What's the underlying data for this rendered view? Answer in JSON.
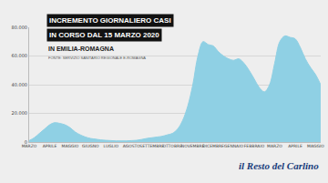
{
  "chart_data": {
    "type": "area",
    "title": "INCREMENTO GIORNALIERO CASI",
    "subtitle": "IN CORSO DAL 15 MARZO 2020",
    "annotations": [
      "IN EMILIA-ROMAGNA",
      "FONTE: SERVIZIO SANITARIO REGIONALE E-ROMAGNA",
      "il Resto del Carlino"
    ],
    "categories": [
      "MARZO",
      null,
      null,
      null,
      "APRILE",
      null,
      null,
      null,
      "MAGGIO",
      null,
      null,
      null,
      "GIUGNO",
      null,
      null,
      null,
      "LUGLIO",
      null,
      null,
      null,
      "AGOSTO",
      null,
      null,
      null,
      "SETTEMBRE",
      null,
      null,
      null,
      "OTTOBRE",
      null,
      null,
      null,
      "NOVEMBRE",
      null,
      null,
      null,
      "DICEMBRE",
      null,
      null,
      null,
      "GENNAIO",
      null,
      null,
      null,
      "FEBBRAIO",
      null,
      null,
      null,
      "MARZO",
      null,
      null,
      null,
      "APRILE",
      null,
      null,
      null,
      "MAGGIO",
      null
    ],
    "values": [
      1000,
      3000,
      6000,
      9000,
      12000,
      13500,
      13000,
      12000,
      10000,
      7000,
      5000,
      3500,
      2500,
      2000,
      1500,
      1200,
      1000,
      800,
      800,
      800,
      1000,
      1200,
      1800,
      2500,
      3000,
      3500,
      4000,
      5000,
      6000,
      9000,
      15000,
      25000,
      40000,
      60000,
      70000,
      68000,
      67000,
      63000,
      60000,
      58000,
      57000,
      58000,
      55000,
      50000,
      44000,
      38000,
      35000,
      40000,
      55000,
      70000,
      74000,
      73000,
      72000,
      66000,
      58000,
      52000,
      47000,
      40000
    ],
    "color": "#8fd0e4",
    "ylim": [
      0,
      80000
    ],
    "yticks": [
      0,
      {
        "value": 20000,
        "label": "20.000"
      },
      {
        "value": 40000,
        "label": "40.000"
      },
      {
        "value": 60000,
        "label": "60.000"
      },
      {
        "value": 80000,
        "label": "80.000"
      }
    ],
    "grid": true
  }
}
